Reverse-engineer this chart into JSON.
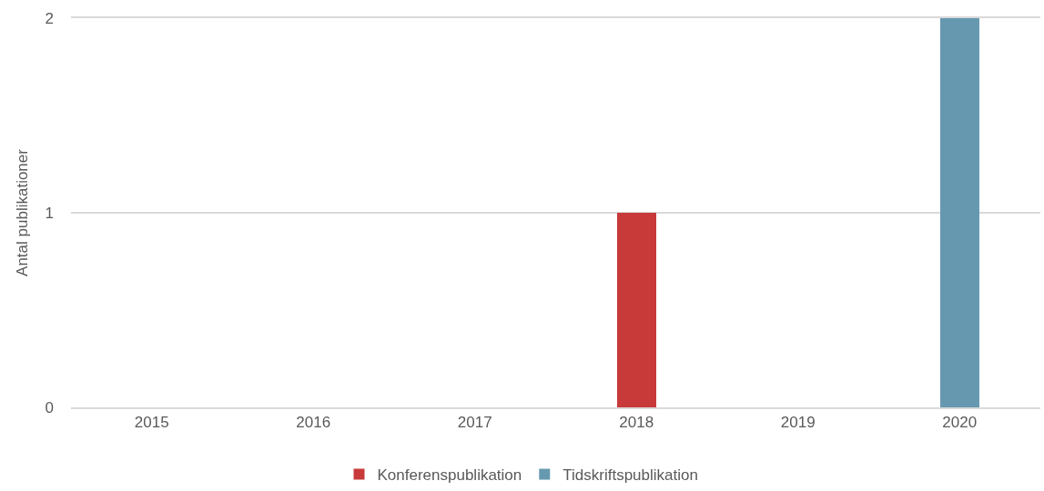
{
  "chart_data": {
    "type": "bar",
    "stacked": true,
    "categories": [
      "2015",
      "2016",
      "2017",
      "2018",
      "2019",
      "2020"
    ],
    "series": [
      {
        "name": "Konferenspublikation",
        "color": "#c83a3a",
        "values": [
          0,
          0,
          0,
          1,
          0,
          0
        ]
      },
      {
        "name": "Tidskriftspublikation",
        "color": "#6699b0",
        "values": [
          0,
          0,
          0,
          0,
          0,
          2
        ]
      }
    ],
    "ylabel": "Antal publikationer",
    "ylim": [
      0,
      2
    ],
    "yticks": [
      0,
      1,
      2
    ],
    "grid": "y",
    "legend": "bottom"
  }
}
